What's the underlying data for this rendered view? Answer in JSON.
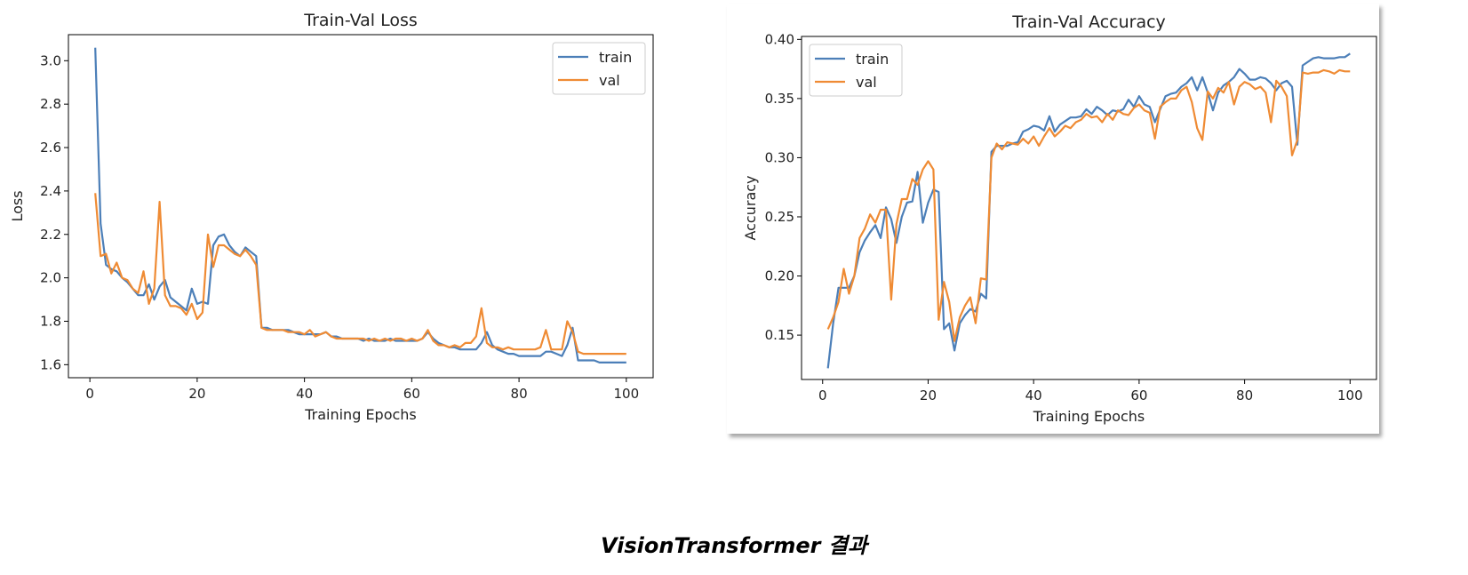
{
  "caption": "VisionTransformer 결과",
  "colors": {
    "train": "#4c7fb8",
    "val": "#ef8b34"
  },
  "chart_data": [
    {
      "type": "line",
      "title": "Train-Val Loss",
      "xlabel": "Training Epochs",
      "ylabel": "Loss",
      "xlim": [
        -4,
        105
      ],
      "ylim": [
        1.54,
        3.12
      ],
      "xticks": [
        0,
        20,
        40,
        60,
        80,
        100
      ],
      "yticks": [
        1.6,
        1.8,
        2.0,
        2.2,
        2.4,
        2.6,
        2.8,
        3.0
      ],
      "ytick_labels": [
        "1.6",
        "1.8",
        "2.0",
        "2.2",
        "2.4",
        "2.6",
        "2.8",
        "3.0"
      ],
      "legend": "top-right",
      "x": [
        1,
        2,
        3,
        4,
        5,
        6,
        7,
        8,
        9,
        10,
        11,
        12,
        13,
        14,
        15,
        16,
        17,
        18,
        19,
        20,
        21,
        22,
        23,
        24,
        25,
        26,
        27,
        28,
        29,
        30,
        31,
        32,
        33,
        34,
        35,
        36,
        37,
        38,
        39,
        40,
        41,
        42,
        43,
        44,
        45,
        46,
        47,
        48,
        49,
        50,
        51,
        52,
        53,
        54,
        55,
        56,
        57,
        58,
        59,
        60,
        61,
        62,
        63,
        64,
        65,
        66,
        67,
        68,
        69,
        70,
        71,
        72,
        73,
        74,
        75,
        76,
        77,
        78,
        79,
        80,
        81,
        82,
        83,
        84,
        85,
        86,
        87,
        88,
        89,
        90,
        91,
        92,
        93,
        94,
        95,
        96,
        97,
        98,
        99,
        100
      ],
      "series": [
        {
          "name": "train",
          "values": [
            3.06,
            2.25,
            2.06,
            2.04,
            2.03,
            2.0,
            1.98,
            1.95,
            1.92,
            1.92,
            1.97,
            1.9,
            1.96,
            1.99,
            1.91,
            1.89,
            1.87,
            1.85,
            1.95,
            1.88,
            1.89,
            1.88,
            2.15,
            2.19,
            2.2,
            2.15,
            2.12,
            2.1,
            2.14,
            2.12,
            2.1,
            1.77,
            1.77,
            1.76,
            1.76,
            1.76,
            1.76,
            1.75,
            1.74,
            1.74,
            1.74,
            1.74,
            1.74,
            1.75,
            1.73,
            1.73,
            1.72,
            1.72,
            1.72,
            1.72,
            1.71,
            1.72,
            1.71,
            1.71,
            1.71,
            1.72,
            1.71,
            1.71,
            1.71,
            1.71,
            1.71,
            1.72,
            1.75,
            1.72,
            1.7,
            1.69,
            1.68,
            1.68,
            1.67,
            1.67,
            1.67,
            1.67,
            1.7,
            1.75,
            1.69,
            1.67,
            1.66,
            1.65,
            1.65,
            1.64,
            1.64,
            1.64,
            1.64,
            1.64,
            1.66,
            1.66,
            1.65,
            1.64,
            1.69,
            1.77,
            1.62,
            1.62,
            1.62,
            1.62,
            1.61,
            1.61,
            1.61,
            1.61,
            1.61,
            1.61
          ]
        },
        {
          "name": "val",
          "values": [
            2.39,
            2.1,
            2.11,
            2.02,
            2.07,
            2.0,
            1.99,
            1.95,
            1.93,
            2.03,
            1.88,
            1.95,
            2.35,
            1.92,
            1.87,
            1.87,
            1.86,
            1.83,
            1.88,
            1.81,
            1.84,
            2.2,
            2.05,
            2.15,
            2.15,
            2.13,
            2.11,
            2.1,
            2.13,
            2.1,
            2.06,
            1.77,
            1.76,
            1.76,
            1.76,
            1.76,
            1.75,
            1.75,
            1.75,
            1.74,
            1.76,
            1.73,
            1.74,
            1.75,
            1.73,
            1.72,
            1.72,
            1.72,
            1.72,
            1.72,
            1.72,
            1.71,
            1.72,
            1.71,
            1.72,
            1.71,
            1.72,
            1.72,
            1.71,
            1.72,
            1.71,
            1.72,
            1.76,
            1.71,
            1.69,
            1.69,
            1.68,
            1.69,
            1.68,
            1.7,
            1.7,
            1.73,
            1.86,
            1.7,
            1.68,
            1.68,
            1.67,
            1.68,
            1.67,
            1.67,
            1.67,
            1.67,
            1.67,
            1.68,
            1.76,
            1.67,
            1.67,
            1.67,
            1.8,
            1.75,
            1.66,
            1.65,
            1.65,
            1.65,
            1.65,
            1.65,
            1.65,
            1.65,
            1.65,
            1.65
          ]
        }
      ]
    },
    {
      "type": "line",
      "title": "Train-Val Accuracy",
      "xlabel": "Training Epochs",
      "ylabel": "Accuracy",
      "xlim": [
        -4,
        105
      ],
      "ylim": [
        0.1125,
        0.4025
      ],
      "xticks": [
        0,
        20,
        40,
        60,
        80,
        100
      ],
      "yticks": [
        0.15,
        0.2,
        0.25,
        0.3,
        0.35,
        0.4
      ],
      "ytick_labels": [
        "0.15",
        "0.20",
        "0.25",
        "0.30",
        "0.35",
        "0.40"
      ],
      "legend": "top-left",
      "x": [
        1,
        2,
        3,
        4,
        5,
        6,
        7,
        8,
        9,
        10,
        11,
        12,
        13,
        14,
        15,
        16,
        17,
        18,
        19,
        20,
        21,
        22,
        23,
        24,
        25,
        26,
        27,
        28,
        29,
        30,
        31,
        32,
        33,
        34,
        35,
        36,
        37,
        38,
        39,
        40,
        41,
        42,
        43,
        44,
        45,
        46,
        47,
        48,
        49,
        50,
        51,
        52,
        53,
        54,
        55,
        56,
        57,
        58,
        59,
        60,
        61,
        62,
        63,
        64,
        65,
        66,
        67,
        68,
        69,
        70,
        71,
        72,
        73,
        74,
        75,
        76,
        77,
        78,
        79,
        80,
        81,
        82,
        83,
        84,
        85,
        86,
        87,
        88,
        89,
        90,
        91,
        92,
        93,
        94,
        95,
        96,
        97,
        98,
        99,
        100
      ],
      "series": [
        {
          "name": "train",
          "values": [
            0.122,
            0.16,
            0.19,
            0.19,
            0.19,
            0.2,
            0.22,
            0.23,
            0.237,
            0.243,
            0.232,
            0.258,
            0.248,
            0.228,
            0.25,
            0.262,
            0.263,
            0.288,
            0.245,
            0.262,
            0.273,
            0.271,
            0.155,
            0.16,
            0.137,
            0.16,
            0.167,
            0.172,
            0.17,
            0.185,
            0.181,
            0.305,
            0.31,
            0.31,
            0.31,
            0.312,
            0.313,
            0.322,
            0.324,
            0.327,
            0.326,
            0.323,
            0.335,
            0.322,
            0.328,
            0.331,
            0.334,
            0.334,
            0.335,
            0.341,
            0.337,
            0.343,
            0.34,
            0.336,
            0.34,
            0.339,
            0.341,
            0.349,
            0.343,
            0.352,
            0.345,
            0.343,
            0.33,
            0.341,
            0.352,
            0.354,
            0.355,
            0.36,
            0.363,
            0.368,
            0.357,
            0.368,
            0.355,
            0.34,
            0.355,
            0.361,
            0.364,
            0.368,
            0.375,
            0.371,
            0.366,
            0.366,
            0.368,
            0.367,
            0.363,
            0.357,
            0.363,
            0.365,
            0.36,
            0.311,
            0.378,
            0.381,
            0.384,
            0.385,
            0.384,
            0.384,
            0.384,
            0.385,
            0.385,
            0.388
          ]
        },
        {
          "name": "val",
          "values": [
            0.155,
            0.165,
            0.178,
            0.206,
            0.185,
            0.2,
            0.232,
            0.24,
            0.252,
            0.245,
            0.256,
            0.256,
            0.18,
            0.244,
            0.265,
            0.265,
            0.282,
            0.277,
            0.29,
            0.297,
            0.29,
            0.163,
            0.195,
            0.178,
            0.145,
            0.165,
            0.175,
            0.182,
            0.16,
            0.198,
            0.197,
            0.3,
            0.312,
            0.307,
            0.313,
            0.312,
            0.311,
            0.316,
            0.312,
            0.318,
            0.31,
            0.318,
            0.325,
            0.318,
            0.322,
            0.327,
            0.325,
            0.33,
            0.332,
            0.337,
            0.334,
            0.335,
            0.33,
            0.337,
            0.332,
            0.34,
            0.337,
            0.336,
            0.342,
            0.345,
            0.34,
            0.338,
            0.316,
            0.343,
            0.347,
            0.35,
            0.35,
            0.357,
            0.36,
            0.347,
            0.325,
            0.315,
            0.356,
            0.35,
            0.359,
            0.355,
            0.364,
            0.345,
            0.36,
            0.364,
            0.362,
            0.358,
            0.36,
            0.355,
            0.33,
            0.365,
            0.36,
            0.352,
            0.302,
            0.315,
            0.372,
            0.371,
            0.372,
            0.372,
            0.374,
            0.373,
            0.371,
            0.374,
            0.373,
            0.373
          ]
        }
      ]
    }
  ]
}
